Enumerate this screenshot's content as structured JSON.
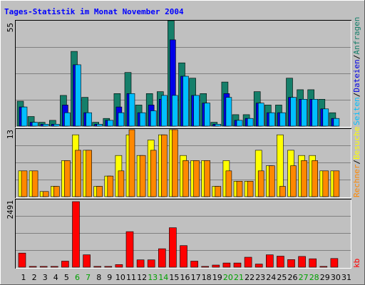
{
  "chart_data": [
    {
      "type": "bar",
      "title": "Tages-Statistik im Monat November 2004",
      "x": [
        "1",
        "2",
        "3",
        "4",
        "5",
        "6",
        "7",
        "8",
        "9",
        "10",
        "11",
        "12",
        "13",
        "14",
        "15",
        "16",
        "17",
        "18",
        "19",
        "20",
        "21",
        "22",
        "23",
        "24",
        "25",
        "26",
        "27",
        "28",
        "29",
        "30",
        "31"
      ],
      "weekend_days": [
        "6",
        "7",
        "13",
        "14",
        "20",
        "21",
        "27",
        "28"
      ],
      "ymax_label": "55",
      "ylim": [
        0,
        55
      ],
      "series": [
        {
          "name": "Anfragen",
          "color": "#157F6A",
          "values": [
            13,
            5,
            2,
            3,
            16,
            39,
            15,
            2,
            4,
            17,
            28,
            11,
            17,
            18,
            55,
            33,
            25,
            17,
            2,
            23,
            6,
            6,
            18,
            11,
            11,
            25,
            19,
            19,
            14,
            7,
            0
          ]
        },
        {
          "name": "Dateien",
          "color": "#0000E8",
          "values": [
            10,
            2,
            1,
            1,
            11,
            32,
            7,
            1,
            3,
            10,
            17,
            7,
            11,
            14,
            45,
            26,
            16,
            12,
            1,
            17,
            3,
            4,
            12,
            7,
            7,
            15,
            14,
            14,
            9,
            4,
            0
          ]
        },
        {
          "name": "Seiten",
          "color": "#00BFFF",
          "values": [
            10,
            2,
            1,
            1,
            7,
            32,
            7,
            1,
            3,
            7,
            17,
            7,
            8,
            16,
            16,
            26,
            16,
            12,
            1,
            15,
            3,
            4,
            12,
            7,
            7,
            15,
            14,
            14,
            9,
            4,
            0
          ]
        }
      ]
    },
    {
      "type": "bar",
      "ymax_label": "13",
      "ylim": [
        0,
        13
      ],
      "series": [
        {
          "name": "Besuche",
          "color": "#FFFF00",
          "values": [
            5,
            5,
            1,
            2,
            7,
            12,
            9,
            2,
            4,
            8,
            12,
            8,
            11,
            12,
            13,
            8,
            7,
            7,
            2,
            7,
            3,
            3,
            9,
            6,
            12,
            9,
            8,
            8,
            5,
            5,
            0
          ]
        },
        {
          "name": "Rechner",
          "color": "#FF8800",
          "values": [
            5,
            5,
            1,
            2,
            7,
            9,
            9,
            2,
            4,
            5,
            13,
            8,
            9,
            12,
            13,
            7,
            7,
            7,
            2,
            5,
            3,
            3,
            5,
            6,
            2,
            6,
            7,
            7,
            5,
            5,
            0
          ]
        }
      ]
    },
    {
      "type": "bar",
      "ymax_label": "2491",
      "ylim": [
        0,
        2491
      ],
      "series": [
        {
          "name": "kb",
          "color": "#FF0000",
          "values": [
            535,
            30,
            30,
            30,
            230,
            2491,
            470,
            30,
            30,
            100,
            1350,
            280,
            280,
            700,
            1500,
            820,
            230,
            30,
            80,
            160,
            160,
            380,
            120,
            470,
            420,
            290,
            410,
            320,
            30,
            330,
            0
          ]
        }
      ]
    }
  ],
  "labels": {
    "title": "Tages-Statistik im Monat November 2004",
    "panel1_ymax": "55",
    "panel2_ymax": "13",
    "panel3_ymax": "2491",
    "right_anfragen": "Anfragen",
    "right_dateien": "Dateien",
    "right_seiten": "Seiten",
    "right_besuche": "Besuche",
    "right_rechner": "Rechner",
    "right_kb": "kb",
    "sep": "/"
  },
  "colors": {
    "background": "#C0C0C0",
    "title": "#0000FF",
    "weekday": "#000000",
    "weekend": "#00A000",
    "gridline": "#808080"
  }
}
